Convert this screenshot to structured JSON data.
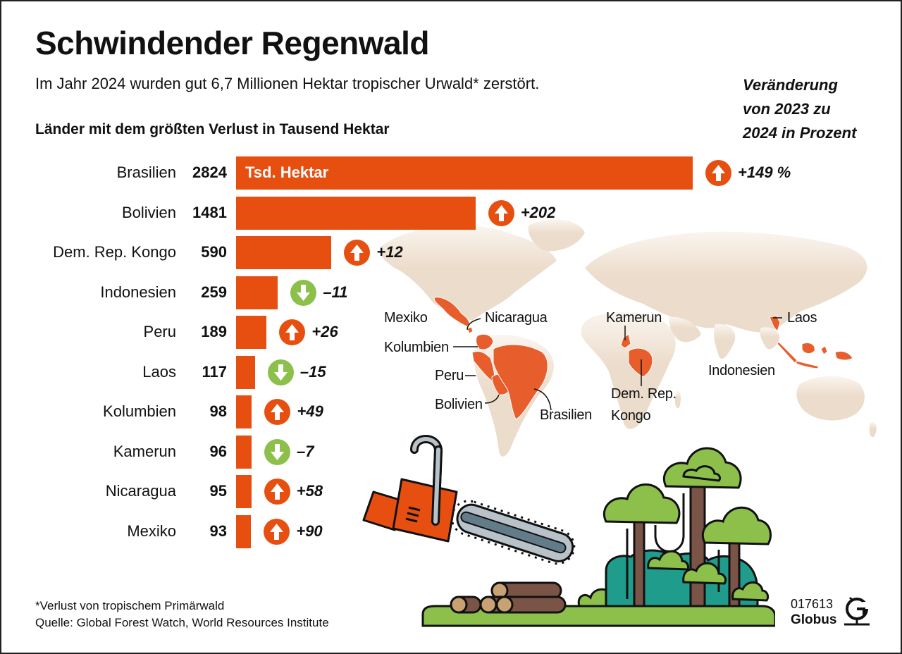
{
  "header": {
    "title": "Schwindender Regenwald",
    "subtitle": "Im Jahr 2024 wurden gut 6,7 Millionen Hektar tropischer Urwald* zerstört.",
    "axis_heading": "Länder mit dem größten Verlust in Tausend Hektar",
    "change_heading": [
      "Veränderung",
      "von 2023 zu",
      "2024 in Prozent"
    ]
  },
  "bar_unit_label": "Tsd. Hektar",
  "colors": {
    "bar": "#e64f10",
    "increase": "#e64f10",
    "decrease": "#8cc04b",
    "map_land": "#ecdccb",
    "map_highlight": "#e85d2c",
    "tree_green": "#8cc04b",
    "bush_teal": "#1f9c8c",
    "trunk": "#7a5446",
    "saw_blade": "#b8c2c8"
  },
  "chart_data": {
    "type": "bar",
    "orientation": "horizontal",
    "title": "Schwindender Regenwald",
    "subtitle": "Im Jahr 2024 wurden gut 6,7 Millionen Hektar tropischer Urwald* zerstört.",
    "xlabel": "Länder mit dem größten Verlust in Tausend Hektar",
    "ylabel": "",
    "unit": "Tsd. Hektar",
    "categories": [
      "Brasilien",
      "Bolivien",
      "Dem. Rep. Kongo",
      "Indonesien",
      "Peru",
      "Laos",
      "Kolumbien",
      "Kamerun",
      "Nicaragua",
      "Mexiko"
    ],
    "series": [
      {
        "name": "Verlust 2024 (Tsd. Hektar)",
        "values": [
          2824,
          1481,
          590,
          259,
          189,
          117,
          98,
          96,
          95,
          93
        ]
      },
      {
        "name": "Veränderung von 2023 zu 2024 in Prozent",
        "values": [
          149,
          202,
          12,
          -11,
          26,
          -15,
          49,
          -7,
          58,
          90
        ]
      }
    ],
    "change_labels": [
      "+149 %",
      "+202",
      "+12",
      "–11",
      "+26",
      "–15",
      "+49",
      "–7",
      "+58",
      "+90"
    ],
    "grid": false,
    "legend": "none"
  },
  "map": {
    "labels": {
      "mexiko": "Mexiko",
      "nicaragua": "Nicaragua",
      "kolumbien": "Kolumbien",
      "peru": "Peru",
      "bolivien": "Bolivien",
      "brasilien": "Brasilien",
      "kamerun": "Kamerun",
      "kongo_1": "Dem. Rep.",
      "kongo_2": "Kongo",
      "laos": "Laos",
      "indonesien": "Indonesien"
    }
  },
  "footer": {
    "footnote": "*Verlust von tropischem Primärwald",
    "source": "Quelle: Global Forest Watch,  World Resources Institute",
    "graphic_id": "017613",
    "brand": "Globus"
  }
}
